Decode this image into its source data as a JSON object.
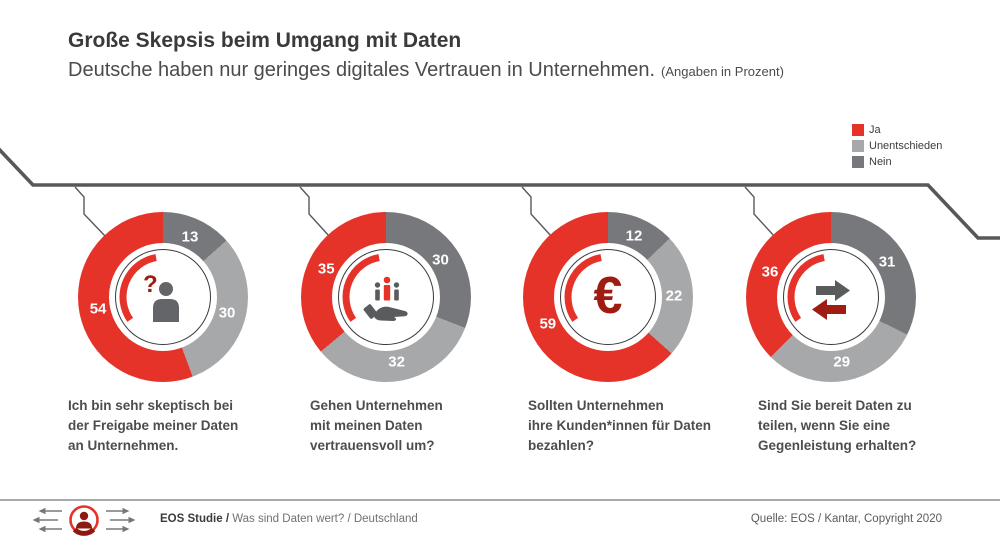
{
  "header": {
    "title": "Große Skepsis beim Umgang mit Daten",
    "subtitle": "Deutsche haben nur geringes digitales Vertrauen in Unternehmen.",
    "subtitle_note": "(Angaben in Prozent)"
  },
  "legend": {
    "position": "top-right",
    "items": [
      {
        "label": "Ja",
        "color": "#e5332a"
      },
      {
        "label": "Unentschieden",
        "color": "#a7a8aa"
      },
      {
        "label": "Nein",
        "color": "#77787b"
      }
    ]
  },
  "colors": {
    "ja_red": "#e5332a",
    "unentschieden_gray": "#a7a8aa",
    "nein_gray": "#77787b",
    "dark_red_accent": "#9e1c12",
    "dark_gray_accent": "#5a5b5d",
    "connector_gray": "#57585a"
  },
  "chart_data": [
    {
      "type": "pie",
      "variant": "donut",
      "unit": "percent",
      "icon": "person-question-icon",
      "question": "Ich bin sehr skeptisch bei\nder Freigabe meiner Daten\nan Unternehmen.",
      "segments": [
        {
          "label": "Ja",
          "value": 54
        },
        {
          "label": "Unentschieden",
          "value": 30
        },
        {
          "label": "Nein",
          "value": 13
        }
      ],
      "clockwise_order_from_top": [
        "Nein",
        "Unentschieden",
        "Ja"
      ]
    },
    {
      "type": "pie",
      "variant": "donut",
      "unit": "percent",
      "icon": "hand-data-icon",
      "question": "Gehen Unternehmen\nmit meinen Daten\nvertrauensvoll um?",
      "segments": [
        {
          "label": "Ja",
          "value": 35
        },
        {
          "label": "Unentschieden",
          "value": 32
        },
        {
          "label": "Nein",
          "value": 30
        }
      ],
      "clockwise_order_from_top": [
        "Nein",
        "Unentschieden",
        "Ja"
      ]
    },
    {
      "type": "pie",
      "variant": "donut",
      "unit": "percent",
      "icon": "euro-icon",
      "question": "Sollten Unternehmen\nihre Kunden*innen für Daten\nbezahlen?",
      "segments": [
        {
          "label": "Ja",
          "value": 59
        },
        {
          "label": "Unentschieden",
          "value": 22
        },
        {
          "label": "Nein",
          "value": 12
        }
      ],
      "clockwise_order_from_top": [
        "Nein",
        "Unentschieden",
        "Ja"
      ]
    },
    {
      "type": "pie",
      "variant": "donut",
      "unit": "percent",
      "icon": "exchange-arrows-icon",
      "question": "Sind Sie bereit Daten zu\nteilen, wenn Sie eine\nGegenleistung erhalten?",
      "segments": [
        {
          "label": "Ja",
          "value": 36
        },
        {
          "label": "Unentschieden",
          "value": 29
        },
        {
          "label": "Nein",
          "value": 31
        }
      ],
      "clockwise_order_from_top": [
        "Nein",
        "Unentschieden",
        "Ja"
      ]
    }
  ],
  "footer": {
    "brand_bold": "EOS Studie /",
    "brand_rest": " Was sind Daten wert? / Deutschland",
    "source": "Quelle: EOS / Kantar, Copyright 2020"
  }
}
